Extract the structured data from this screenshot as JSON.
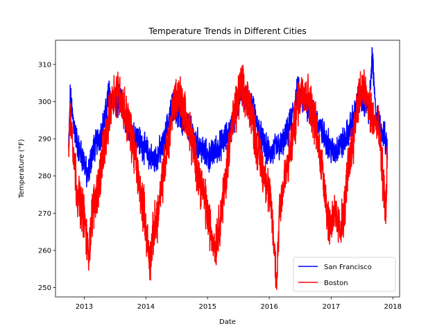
{
  "chart_data": {
    "type": "line",
    "title": "Temperature Trends in Different Cities",
    "xlabel": "Date",
    "ylabel": "Temperature (°F)",
    "xlim": [
      "2012-07-15",
      "2018-02-10"
    ],
    "ylim": [
      247.5,
      316.5
    ],
    "xticks": [
      "2013",
      "2014",
      "2015",
      "2016",
      "2017",
      "2018"
    ],
    "yticks": [
      250,
      260,
      270,
      280,
      290,
      300,
      310
    ],
    "grid": false,
    "legend_position": "lower-right",
    "x_start": "2012-10-01",
    "x_end": "2017-11-30",
    "series": [
      {
        "name": "San Francisco",
        "color": "#0000ff",
        "points": [
          [
            "2012-10-01",
            287
          ],
          [
            "2012-10-10",
            301
          ],
          [
            "2012-10-25",
            296
          ],
          [
            "2012-11-10",
            291
          ],
          [
            "2012-12-01",
            287
          ],
          [
            "2013-01-01",
            284
          ],
          [
            "2013-01-20",
            279
          ],
          [
            "2013-02-15",
            286
          ],
          [
            "2013-03-15",
            289
          ],
          [
            "2013-04-15",
            292
          ],
          [
            "2013-05-10",
            297
          ],
          [
            "2013-05-25",
            303
          ],
          [
            "2013-06-15",
            300
          ],
          [
            "2013-07-15",
            299
          ],
          [
            "2013-08-01",
            301
          ],
          [
            "2013-08-20",
            297
          ],
          [
            "2013-09-15",
            294
          ],
          [
            "2013-10-15",
            292
          ],
          [
            "2013-11-15",
            290
          ],
          [
            "2013-12-15",
            288
          ],
          [
            "2014-01-15",
            286
          ],
          [
            "2014-02-15",
            284
          ],
          [
            "2014-03-15",
            286
          ],
          [
            "2014-04-15",
            288
          ],
          [
            "2014-05-15",
            295
          ],
          [
            "2014-06-15",
            300
          ],
          [
            "2014-07-15",
            296
          ],
          [
            "2014-08-15",
            294
          ],
          [
            "2014-09-15",
            293
          ],
          [
            "2014-10-15",
            290
          ],
          [
            "2014-11-15",
            288
          ],
          [
            "2014-12-15",
            286
          ],
          [
            "2015-01-15",
            285
          ],
          [
            "2015-02-15",
            287
          ],
          [
            "2015-03-15",
            288
          ],
          [
            "2015-04-15",
            290
          ],
          [
            "2015-05-15",
            292
          ],
          [
            "2015-06-15",
            297
          ],
          [
            "2015-07-15",
            302
          ],
          [
            "2015-08-15",
            301
          ],
          [
            "2015-09-15",
            299
          ],
          [
            "2015-10-15",
            295
          ],
          [
            "2015-11-15",
            290
          ],
          [
            "2015-12-15",
            287
          ],
          [
            "2016-01-15",
            286
          ],
          [
            "2016-02-15",
            288
          ],
          [
            "2016-03-15",
            288
          ],
          [
            "2016-04-15",
            291
          ],
          [
            "2016-05-15",
            296
          ],
          [
            "2016-06-15",
            303
          ],
          [
            "2016-07-15",
            300
          ],
          [
            "2016-08-15",
            299
          ],
          [
            "2016-09-15",
            297
          ],
          [
            "2016-10-15",
            294
          ],
          [
            "2016-11-15",
            291
          ],
          [
            "2016-12-15",
            289
          ],
          [
            "2017-01-15",
            286
          ],
          [
            "2017-02-15",
            288
          ],
          [
            "2017-03-15",
            289
          ],
          [
            "2017-04-15",
            292
          ],
          [
            "2017-05-15",
            296
          ],
          [
            "2017-06-15",
            301
          ],
          [
            "2017-07-15",
            300
          ],
          [
            "2017-08-15",
            298
          ],
          [
            "2017-09-01",
            313
          ],
          [
            "2017-09-20",
            297
          ],
          [
            "2017-10-15",
            294
          ],
          [
            "2017-11-15",
            290
          ],
          [
            "2017-11-30",
            287
          ]
        ]
      },
      {
        "name": "Boston",
        "color": "#ff0000",
        "points": [
          [
            "2012-10-01",
            289
          ],
          [
            "2012-10-15",
            297
          ],
          [
            "2012-11-01",
            285
          ],
          [
            "2012-11-20",
            276
          ],
          [
            "2012-12-15",
            272
          ],
          [
            "2013-01-05",
            268
          ],
          [
            "2013-01-24",
            258
          ],
          [
            "2013-02-20",
            271
          ],
          [
            "2013-03-20",
            276
          ],
          [
            "2013-04-20",
            285
          ],
          [
            "2013-05-20",
            293
          ],
          [
            "2013-06-20",
            302
          ],
          [
            "2013-07-20",
            303
          ],
          [
            "2013-08-20",
            299
          ],
          [
            "2013-09-20",
            294
          ],
          [
            "2013-10-20",
            288
          ],
          [
            "2013-11-20",
            278
          ],
          [
            "2013-12-20",
            271
          ],
          [
            "2014-01-10",
            262
          ],
          [
            "2014-01-25",
            257
          ],
          [
            "2014-02-15",
            265
          ],
          [
            "2014-03-15",
            270
          ],
          [
            "2014-04-15",
            281
          ],
          [
            "2014-05-15",
            290
          ],
          [
            "2014-06-15",
            300
          ],
          [
            "2014-07-15",
            302
          ],
          [
            "2014-08-15",
            298
          ],
          [
            "2014-09-15",
            292
          ],
          [
            "2014-10-15",
            286
          ],
          [
            "2014-11-15",
            279
          ],
          [
            "2014-12-15",
            274
          ],
          [
            "2015-01-15",
            266
          ],
          [
            "2015-02-15",
            261
          ],
          [
            "2015-03-15",
            268
          ],
          [
            "2015-04-15",
            278
          ],
          [
            "2015-05-15",
            291
          ],
          [
            "2015-06-15",
            297
          ],
          [
            "2015-07-15",
            304
          ],
          [
            "2015-08-15",
            301
          ],
          [
            "2015-09-15",
            298
          ],
          [
            "2015-10-15",
            289
          ],
          [
            "2015-11-15",
            283
          ],
          [
            "2015-12-15",
            279
          ],
          [
            "2016-01-15",
            270
          ],
          [
            "2016-02-14",
            251
          ],
          [
            "2016-03-01",
            272
          ],
          [
            "2016-03-20",
            276
          ],
          [
            "2016-04-20",
            283
          ],
          [
            "2016-05-20",
            291
          ],
          [
            "2016-06-20",
            300
          ],
          [
            "2016-07-20",
            304
          ],
          [
            "2016-08-20",
            301
          ],
          [
            "2016-09-20",
            296
          ],
          [
            "2016-10-20",
            288
          ],
          [
            "2016-11-20",
            279
          ],
          [
            "2016-12-20",
            266
          ],
          [
            "2017-01-15",
            270
          ],
          [
            "2017-02-15",
            266
          ],
          [
            "2017-03-15",
            268
          ],
          [
            "2017-04-15",
            284
          ],
          [
            "2017-05-15",
            291
          ],
          [
            "2017-06-15",
            302
          ],
          [
            "2017-07-15",
            303
          ],
          [
            "2017-08-15",
            298
          ],
          [
            "2017-09-15",
            295
          ],
          [
            "2017-10-15",
            290
          ],
          [
            "2017-11-10",
            276
          ],
          [
            "2017-11-20",
            270
          ],
          [
            "2017-11-30",
            287
          ]
        ]
      }
    ]
  }
}
